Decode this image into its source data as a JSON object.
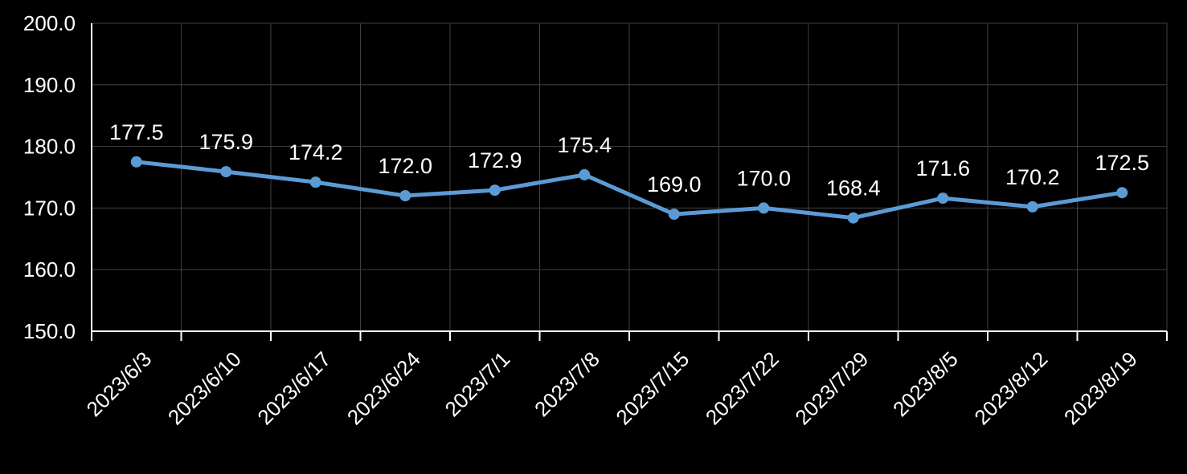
{
  "chart_data": {
    "type": "line",
    "title": "",
    "xlabel": "",
    "ylabel": "",
    "categories": [
      "2023/6/3",
      "2023/6/10",
      "2023/6/17",
      "2023/6/24",
      "2023/7/1",
      "2023/7/8",
      "2023/7/15",
      "2023/7/22",
      "2023/7/29",
      "2023/8/5",
      "2023/8/12",
      "2023/8/19"
    ],
    "series": [
      {
        "values": [
          177.5,
          175.9,
          174.2,
          172.0,
          172.9,
          175.4,
          169.0,
          170.0,
          168.4,
          171.6,
          170.2,
          172.5
        ],
        "labels": [
          "177.5",
          "175.9",
          "174.2",
          "172.0",
          "172.9",
          "175.4",
          "169.0",
          "170.0",
          "168.4",
          "171.6",
          "170.2",
          "172.5"
        ],
        "color": "#5b9bd5"
      }
    ],
    "ylim": [
      150,
      200
    ],
    "yticks": [
      "150.0",
      "160.0",
      "170.0",
      "180.0",
      "190.0",
      "200.0"
    ],
    "grid": true,
    "legend": "none",
    "colors": {
      "background": "#000000",
      "text": "#ffffff",
      "grid": "#404040",
      "axis": "#ffffff",
      "line": "#5b9bd5"
    }
  }
}
